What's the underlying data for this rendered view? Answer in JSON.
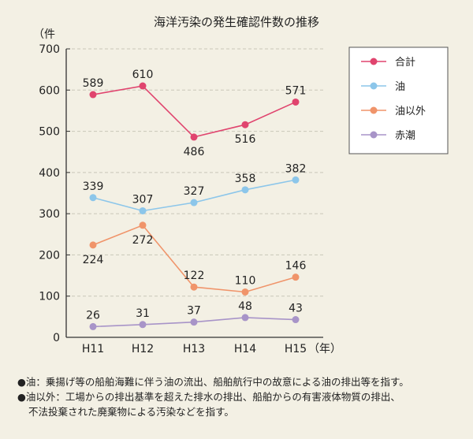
{
  "chart_data": {
    "type": "line",
    "title": "海洋汚染の発生確認件数の推移",
    "ylabel": "（件",
    "xlabel": "",
    "x_unit_suffix": "（年）",
    "categories": [
      "H11",
      "H12",
      "H13",
      "H14",
      "H15"
    ],
    "ylim": [
      0,
      700
    ],
    "yticks": [
      0,
      100,
      200,
      300,
      400,
      500,
      600,
      700
    ],
    "grid": true,
    "legend_position": "top-right",
    "series": [
      {
        "name": "合計",
        "color": "#e0446e",
        "values": [
          589,
          610,
          486,
          516,
          571
        ],
        "label_pos": [
          "above",
          "above",
          "below",
          "below",
          "above"
        ]
      },
      {
        "name": "油",
        "color": "#8cc6ea",
        "values": [
          339,
          307,
          327,
          358,
          382
        ],
        "label_pos": [
          "above",
          "above",
          "above",
          "above",
          "above"
        ]
      },
      {
        "name": "油以外",
        "color": "#f0946a",
        "values": [
          224,
          272,
          122,
          110,
          146
        ],
        "label_pos": [
          "below",
          "below",
          "above",
          "above",
          "above"
        ]
      },
      {
        "name": "赤潮",
        "color": "#a894c8",
        "values": [
          26,
          31,
          37,
          48,
          43
        ],
        "label_pos": [
          "above",
          "above",
          "above",
          "above",
          "above"
        ]
      }
    ]
  },
  "notes": [
    "●油：乗揚げ等の船舶海難に伴う油の流出、船舶航行中の故意による油の排出等を指す。",
    "●油以外：工場からの排出基準を超えた排水の排出、船舶からの有害液体物質の排出、",
    "不法投棄された廃棄物による汚染などを指す。"
  ]
}
